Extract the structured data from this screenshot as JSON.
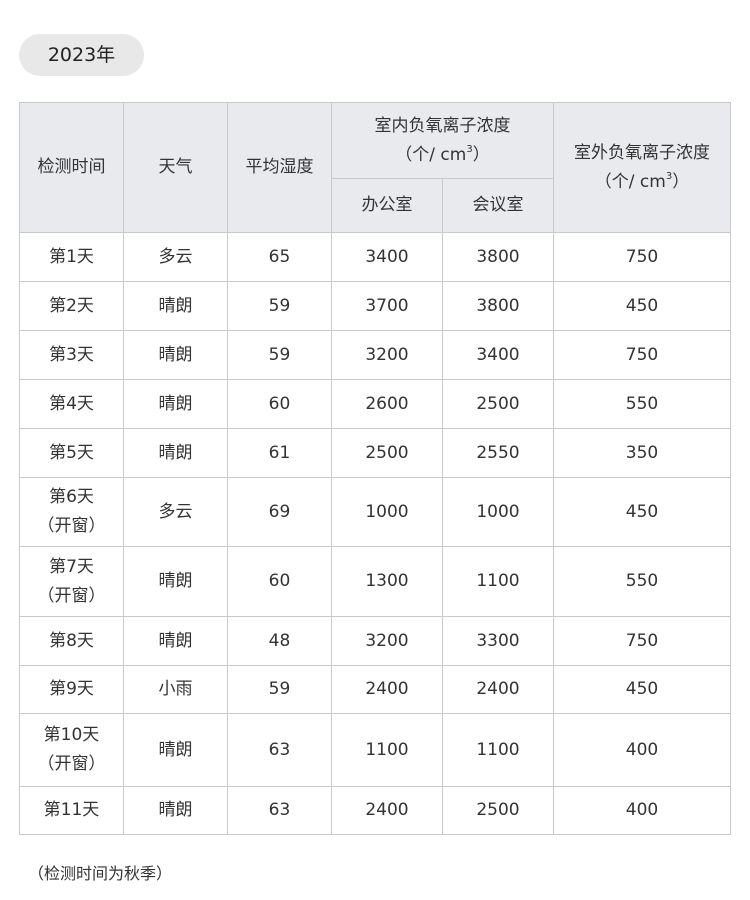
{
  "year_badge": "2023年",
  "table": {
    "headers": {
      "date": "检测时间",
      "weather": "天气",
      "humidity": "平均湿度",
      "indoor": "室内负氧离子浓度",
      "indoor_unit_pre": "（个/ cm",
      "indoor_unit_sup": "3",
      "indoor_unit_post": "）",
      "office": "办公室",
      "meeting": "会议室",
      "outdoor": "室外负氧离子浓度",
      "outdoor_unit_pre": "（个/ cm",
      "outdoor_unit_sup": "3",
      "outdoor_unit_post": "）"
    },
    "rows": [
      {
        "day": "第1天",
        "note": "",
        "weather": "多云",
        "humidity": "65",
        "office": "3400",
        "meeting": "3800",
        "outdoor": "750"
      },
      {
        "day": "第2天",
        "note": "",
        "weather": "晴朗",
        "humidity": "59",
        "office": "3700",
        "meeting": "3800",
        "outdoor": "450"
      },
      {
        "day": "第3天",
        "note": "",
        "weather": "晴朗",
        "humidity": "59",
        "office": "3200",
        "meeting": "3400",
        "outdoor": "750"
      },
      {
        "day": "第4天",
        "note": "",
        "weather": "晴朗",
        "humidity": "60",
        "office": "2600",
        "meeting": "2500",
        "outdoor": "550"
      },
      {
        "day": "第5天",
        "note": "",
        "weather": "晴朗",
        "humidity": "61",
        "office": "2500",
        "meeting": "2550",
        "outdoor": "350"
      },
      {
        "day": "第6天",
        "note": "（开窗）",
        "weather": "多云",
        "humidity": "69",
        "office": "1000",
        "meeting": "1000",
        "outdoor": "450"
      },
      {
        "day": "第7天",
        "note": "（开窗）",
        "weather": "晴朗",
        "humidity": "60",
        "office": "1300",
        "meeting": "1100",
        "outdoor": "550"
      },
      {
        "day": "第8天",
        "note": "",
        "weather": "晴朗",
        "humidity": "48",
        "office": "3200",
        "meeting": "3300",
        "outdoor": "750"
      },
      {
        "day": "第9天",
        "note": "",
        "weather": "小雨",
        "humidity": "59",
        "office": "2400",
        "meeting": "2400",
        "outdoor": "450"
      },
      {
        "day": "第10天",
        "note": "（开窗）",
        "weather": "晴朗",
        "humidity": "63",
        "office": "1100",
        "meeting": "1100",
        "outdoor": "400"
      },
      {
        "day": "第11天",
        "note": "",
        "weather": "晴朗",
        "humidity": "63",
        "office": "2400",
        "meeting": "2500",
        "outdoor": "400"
      }
    ]
  },
  "footnote": "（检测时间为秋季）"
}
